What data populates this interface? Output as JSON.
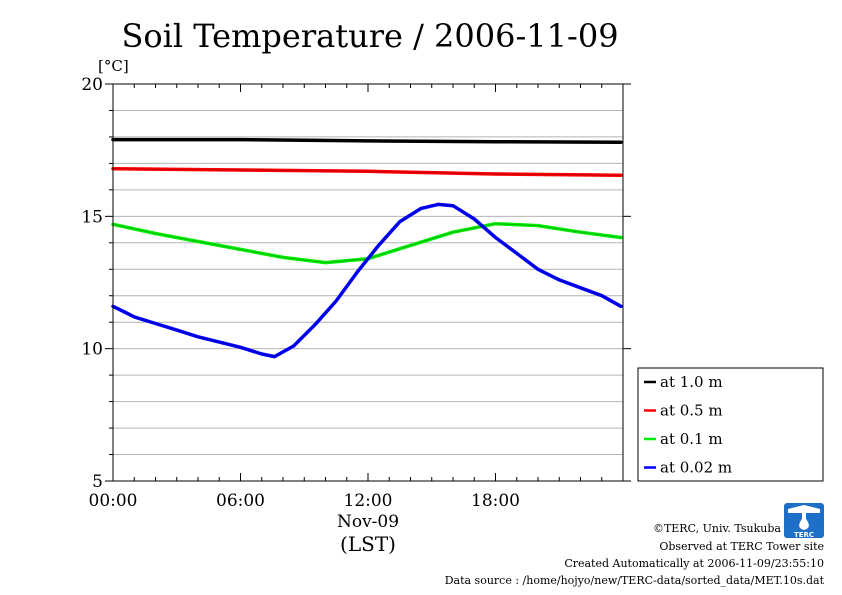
{
  "chart_data": {
    "type": "line",
    "title": "Soil Temperature / 2006-11-09",
    "ylabel": "[°C]",
    "xlabel": "(LST)",
    "date_label": "Nov-09",
    "xlim": [
      0,
      24
    ],
    "ylim": [
      5,
      20
    ],
    "x_ticks": [
      0,
      6,
      12,
      18
    ],
    "x_tick_labels": [
      "00:00",
      "06:00",
      "12:00",
      "18:00"
    ],
    "y_ticks": [
      5,
      10,
      15,
      20
    ],
    "y_tick_labels": [
      "5",
      "10",
      "15",
      "20"
    ],
    "grid": true,
    "legend_position": "right",
    "series": [
      {
        "name": "at 1.0 m",
        "color": "#000000",
        "x": [
          0,
          6,
          12,
          18,
          23.9
        ],
        "y": [
          17.9,
          17.9,
          17.85,
          17.82,
          17.8
        ]
      },
      {
        "name": "at 0.5 m",
        "color": "#ff0000",
        "x": [
          0,
          6,
          12,
          18,
          23.9
        ],
        "y": [
          16.8,
          16.75,
          16.7,
          16.6,
          16.55
        ]
      },
      {
        "name": "at 0.1 m",
        "color": "#00ee00",
        "x": [
          0,
          2,
          4,
          6,
          8,
          10,
          12,
          14,
          16,
          18,
          20,
          22,
          23.9
        ],
        "y": [
          14.7,
          14.35,
          14.05,
          13.75,
          13.45,
          13.25,
          13.4,
          13.9,
          14.4,
          14.72,
          14.65,
          14.4,
          14.2
        ]
      },
      {
        "name": "at 0.02 m",
        "color": "#0000ff",
        "x": [
          0,
          1,
          2,
          3,
          4,
          5,
          6,
          7,
          7.6,
          8.5,
          9.5,
          10.5,
          11.5,
          12.5,
          13.5,
          14.5,
          15.3,
          16,
          17,
          18,
          19,
          20,
          21,
          22,
          23,
          23.9
        ],
        "y": [
          11.6,
          11.2,
          10.95,
          10.7,
          10.45,
          10.25,
          10.05,
          9.8,
          9.7,
          10.1,
          10.9,
          11.8,
          12.9,
          13.9,
          14.8,
          15.3,
          15.45,
          15.4,
          14.9,
          14.2,
          13.6,
          13.0,
          12.6,
          12.3,
          12.0,
          11.6
        ]
      }
    ]
  },
  "footer": {
    "copyright": "©TERC, Univ. Tsukuba",
    "observed": "Observed at TERC Tower site",
    "created": "Created Automatically at 2006-11-09/23:55:10",
    "source": "Data source : /home/hojyo/new/TERC-data/sorted_data/MET.10s.dat"
  },
  "logo": {
    "text": "TERC",
    "color": "#1e6fc8"
  }
}
